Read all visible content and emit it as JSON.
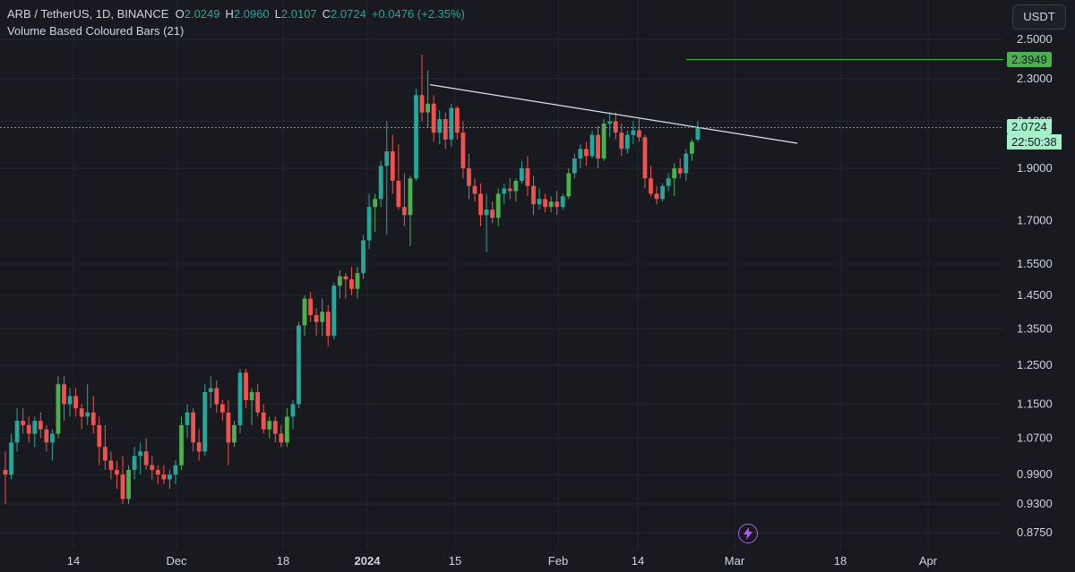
{
  "legend": {
    "symbol": "ARB / TetherUS, 1D, BINANCE",
    "open_label": "O",
    "open": "2.0249",
    "high_label": "H",
    "high": "2.0960",
    "low_label": "L",
    "low": "2.0107",
    "close_label": "C",
    "close": "2.0724",
    "change": "+0.0476 (+2.35%)",
    "indicator": "Volume Based Coloured Bars (21)"
  },
  "currency_button": "USDT",
  "target_price": "2.3949",
  "current_price": "2.0724",
  "countdown": "22:50:38",
  "colors": {
    "background": "#181a20",
    "up": "#26a69a",
    "up_bright": "#4caf50",
    "down": "#ef5350",
    "trendline": "#e0e3eb",
    "target_line": "#4caf50",
    "price_badge": "#a5f0c8"
  },
  "chart_data": {
    "type": "candlestick",
    "scale": "log",
    "y_ticks": [
      "2.5000",
      "2.3000",
      "2.1000",
      "1.9000",
      "1.7000",
      "1.5500",
      "1.4500",
      "1.3500",
      "1.2500",
      "1.1500",
      "1.0700",
      "0.9900",
      "0.9300",
      "0.8750"
    ],
    "x_ticks": [
      "14",
      "Dec",
      "18",
      "2024",
      "15",
      "Feb",
      "14",
      "Mar",
      "18",
      "Apr"
    ],
    "ohlc": [
      [
        1.0,
        1.04,
        0.93,
        0.99
      ],
      [
        0.99,
        1.08,
        0.98,
        1.06
      ],
      [
        1.06,
        1.14,
        1.04,
        1.11
      ],
      [
        1.11,
        1.14,
        1.08,
        1.1
      ],
      [
        1.1,
        1.12,
        1.06,
        1.08
      ],
      [
        1.08,
        1.12,
        1.05,
        1.11
      ],
      [
        1.11,
        1.13,
        1.07,
        1.09
      ],
      [
        1.09,
        1.1,
        1.04,
        1.06
      ],
      [
        1.06,
        1.09,
        1.02,
        1.08
      ],
      [
        1.08,
        1.22,
        1.07,
        1.2
      ],
      [
        1.2,
        1.22,
        1.11,
        1.15
      ],
      [
        1.15,
        1.19,
        1.12,
        1.17
      ],
      [
        1.17,
        1.19,
        1.12,
        1.14
      ],
      [
        1.14,
        1.15,
        1.09,
        1.12
      ],
      [
        1.12,
        1.2,
        1.1,
        1.13
      ],
      [
        1.13,
        1.17,
        1.08,
        1.1
      ],
      [
        1.1,
        1.12,
        1.01,
        1.05
      ],
      [
        1.05,
        1.1,
        1.0,
        1.02
      ],
      [
        1.02,
        1.04,
        0.98,
        1.0
      ],
      [
        1.0,
        1.02,
        0.96,
        0.99
      ],
      [
        0.99,
        1.03,
        0.93,
        0.94
      ],
      [
        0.94,
        1.01,
        0.93,
        1.0
      ],
      [
        1.0,
        1.05,
        0.98,
        1.03
      ],
      [
        1.03,
        1.06,
        0.99,
        1.04
      ],
      [
        1.04,
        1.07,
        1.0,
        1.01
      ],
      [
        1.01,
        1.03,
        0.98,
        1.0
      ],
      [
        1.0,
        1.01,
        0.97,
        0.99
      ],
      [
        0.99,
        1.01,
        0.97,
        0.98
      ],
      [
        0.98,
        1.0,
        0.96,
        0.99
      ],
      [
        0.99,
        1.02,
        0.97,
        1.01
      ],
      [
        1.01,
        1.12,
        1.0,
        1.1
      ],
      [
        1.1,
        1.15,
        1.07,
        1.13
      ],
      [
        1.13,
        1.14,
        1.04,
        1.06
      ],
      [
        1.06,
        1.09,
        1.02,
        1.04
      ],
      [
        1.04,
        1.2,
        1.03,
        1.18
      ],
      [
        1.18,
        1.22,
        1.14,
        1.19
      ],
      [
        1.19,
        1.21,
        1.13,
        1.15
      ],
      [
        1.15,
        1.16,
        1.11,
        1.13
      ],
      [
        1.13,
        1.16,
        1.01,
        1.06
      ],
      [
        1.06,
        1.11,
        1.05,
        1.1
      ],
      [
        1.1,
        1.24,
        1.08,
        1.23
      ],
      [
        1.23,
        1.24,
        1.14,
        1.16
      ],
      [
        1.16,
        1.19,
        1.1,
        1.18
      ],
      [
        1.18,
        1.2,
        1.12,
        1.13
      ],
      [
        1.13,
        1.15,
        1.08,
        1.09
      ],
      [
        1.09,
        1.12,
        1.07,
        1.11
      ],
      [
        1.11,
        1.12,
        1.06,
        1.08
      ],
      [
        1.08,
        1.1,
        1.05,
        1.06
      ],
      [
        1.06,
        1.14,
        1.05,
        1.12
      ],
      [
        1.12,
        1.16,
        1.09,
        1.15
      ],
      [
        1.15,
        1.37,
        1.14,
        1.36
      ],
      [
        1.36,
        1.45,
        1.33,
        1.44
      ],
      [
        1.44,
        1.46,
        1.37,
        1.39
      ],
      [
        1.39,
        1.41,
        1.33,
        1.37
      ],
      [
        1.37,
        1.44,
        1.33,
        1.4
      ],
      [
        1.4,
        1.42,
        1.3,
        1.33
      ],
      [
        1.33,
        1.49,
        1.32,
        1.48
      ],
      [
        1.48,
        1.53,
        1.44,
        1.51
      ],
      [
        1.51,
        1.52,
        1.44,
        1.5
      ],
      [
        1.5,
        1.54,
        1.45,
        1.47
      ],
      [
        1.47,
        1.54,
        1.44,
        1.52
      ],
      [
        1.52,
        1.65,
        1.5,
        1.63
      ],
      [
        1.63,
        1.8,
        1.6,
        1.75
      ],
      [
        1.75,
        1.8,
        1.66,
        1.78
      ],
      [
        1.78,
        1.93,
        1.75,
        1.91
      ],
      [
        1.91,
        2.1,
        1.65,
        1.97
      ],
      [
        1.97,
        2.04,
        1.8,
        1.85
      ],
      [
        1.85,
        2.0,
        1.74,
        1.75
      ],
      [
        1.75,
        1.88,
        1.68,
        1.72
      ],
      [
        1.72,
        1.87,
        1.61,
        1.86
      ],
      [
        1.86,
        2.25,
        1.85,
        2.22
      ],
      [
        2.22,
        2.42,
        2.1,
        2.14
      ],
      [
        2.14,
        2.34,
        2.07,
        2.18
      ],
      [
        2.18,
        2.22,
        2.01,
        2.05
      ],
      [
        2.05,
        2.15,
        2.0,
        2.11
      ],
      [
        2.11,
        2.14,
        1.98,
        2.02
      ],
      [
        2.02,
        2.18,
        1.99,
        2.16
      ],
      [
        2.16,
        2.17,
        2.02,
        2.05
      ],
      [
        2.05,
        2.1,
        1.86,
        1.9
      ],
      [
        1.9,
        1.96,
        1.78,
        1.83
      ],
      [
        1.83,
        1.86,
        1.77,
        1.8
      ],
      [
        1.8,
        1.84,
        1.68,
        1.72
      ],
      [
        1.72,
        1.8,
        1.59,
        1.74
      ],
      [
        1.74,
        1.77,
        1.69,
        1.71
      ],
      [
        1.71,
        1.82,
        1.68,
        1.8
      ],
      [
        1.8,
        1.84,
        1.76,
        1.82
      ],
      [
        1.82,
        1.86,
        1.78,
        1.81
      ],
      [
        1.81,
        1.86,
        1.77,
        1.85
      ],
      [
        1.85,
        1.93,
        1.84,
        1.9
      ],
      [
        1.9,
        1.95,
        1.79,
        1.83
      ],
      [
        1.83,
        1.87,
        1.72,
        1.76
      ],
      [
        1.76,
        1.82,
        1.74,
        1.78
      ],
      [
        1.78,
        1.8,
        1.73,
        1.75
      ],
      [
        1.75,
        1.79,
        1.73,
        1.77
      ],
      [
        1.77,
        1.81,
        1.72,
        1.75
      ],
      [
        1.75,
        1.8,
        1.74,
        1.79
      ],
      [
        1.79,
        1.9,
        1.78,
        1.88
      ],
      [
        1.88,
        1.96,
        1.86,
        1.94
      ],
      [
        1.94,
        2.0,
        1.9,
        1.98
      ],
      [
        1.98,
        2.01,
        1.91,
        1.95
      ],
      [
        1.95,
        2.06,
        1.94,
        2.04
      ],
      [
        2.04,
        2.08,
        1.9,
        1.94
      ],
      [
        1.94,
        2.11,
        1.93,
        2.09
      ],
      [
        2.09,
        2.14,
        2.03,
        2.1
      ],
      [
        2.1,
        2.14,
        2.02,
        2.05
      ],
      [
        2.05,
        2.09,
        1.95,
        1.98
      ],
      [
        1.98,
        2.06,
        1.96,
        2.04
      ],
      [
        2.04,
        2.1,
        2.0,
        2.06
      ],
      [
        2.06,
        2.11,
        2.01,
        2.03
      ],
      [
        2.03,
        2.04,
        1.82,
        1.86
      ],
      [
        1.86,
        1.91,
        1.79,
        1.8
      ],
      [
        1.8,
        1.83,
        1.76,
        1.78
      ],
      [
        1.78,
        1.84,
        1.77,
        1.83
      ],
      [
        1.83,
        1.88,
        1.81,
        1.86
      ],
      [
        1.86,
        1.92,
        1.79,
        1.9
      ],
      [
        1.9,
        1.94,
        1.86,
        1.88
      ],
      [
        1.88,
        1.98,
        1.85,
        1.96
      ],
      [
        1.96,
        2.02,
        1.93,
        2.01
      ],
      [
        2.02,
        2.1,
        2.01,
        2.07
      ]
    ],
    "trendline": [
      [
        2.27,
        71
      ],
      [
        2.0,
        126
      ]
    ],
    "horizontal_level": 2.3949
  }
}
